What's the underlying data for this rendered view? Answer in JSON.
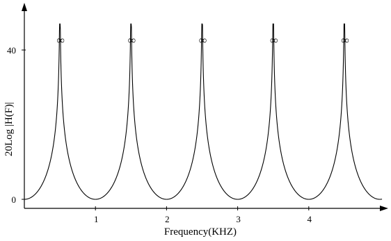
{
  "chart_data": {
    "type": "line",
    "title": "",
    "xlabel": "Frequency(KHZ)",
    "ylabel": "20Log |H(F)|",
    "xlim": [
      0,
      5.05
    ],
    "ylim": [
      0,
      40
    ],
    "x_ticks": [
      {
        "value": 1,
        "label": "1"
      },
      {
        "value": 2,
        "label": "2"
      },
      {
        "value": 3,
        "label": "3"
      },
      {
        "value": 4,
        "label": "4"
      }
    ],
    "y_ticks": [
      {
        "value": 0,
        "label": "0"
      },
      {
        "value": 40,
        "label": "40"
      }
    ],
    "peaks": [
      {
        "x": 0.5,
        "label": "∞"
      },
      {
        "x": 1.5,
        "label": "∞"
      },
      {
        "x": 2.5,
        "label": "∞"
      },
      {
        "x": 3.5,
        "label": "∞"
      },
      {
        "x": 4.5,
        "label": "∞"
      }
    ],
    "minima_x": [
      0,
      1,
      2,
      3,
      4,
      5
    ],
    "grid": false,
    "legend": "none",
    "color": "#000000"
  }
}
